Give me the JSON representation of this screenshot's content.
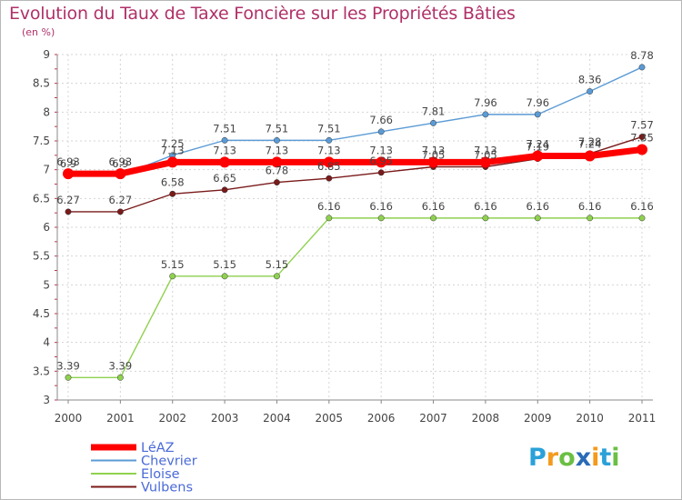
{
  "chart_data": {
    "type": "line",
    "title": "Evolution du Taux de Taxe Foncière sur les Propriétés Bâties",
    "ylabel": "(en %)",
    "xlabel": "",
    "x": [
      "2000",
      "2001",
      "2002",
      "2003",
      "2004",
      "2005",
      "2006",
      "2007",
      "2008",
      "2009",
      "2010",
      "2011"
    ],
    "ylim": [
      3,
      9
    ],
    "yticks": [
      "3",
      "3.5",
      "4",
      "4.5",
      "5",
      "5.5",
      "6",
      "6.5",
      "7",
      "7.5",
      "8",
      "8.5",
      "9"
    ],
    "grid": true,
    "legend_position": "bottom-left",
    "series": [
      {
        "name": "LéAZ",
        "color": "#ff0000",
        "values": [
          6.93,
          6.93,
          7.13,
          7.13,
          7.13,
          7.13,
          7.13,
          7.13,
          7.13,
          7.24,
          7.24,
          7.35
        ],
        "labels": [
          "6.93",
          "6.93",
          "7.13",
          "7.13",
          "7.13",
          "7.13",
          "7.13",
          "7.13",
          "7.13",
          "7.24",
          "7.24",
          "7.35"
        ]
      },
      {
        "name": "Chevrier",
        "color": "#5b9bd5",
        "values": [
          6.9,
          6.9,
          7.25,
          7.51,
          7.51,
          7.51,
          7.66,
          7.81,
          7.96,
          7.96,
          8.36,
          8.78
        ],
        "labels": [
          "6.9",
          "6.9",
          "7.25",
          "7.51",
          "7.51",
          "7.51",
          "7.66",
          "7.81",
          "7.96",
          "7.96",
          "8.36",
          "8.78"
        ]
      },
      {
        "name": "Eloise",
        "color": "#8fd14f",
        "values": [
          3.39,
          3.39,
          5.15,
          5.15,
          5.15,
          6.16,
          6.16,
          6.16,
          6.16,
          6.16,
          6.16,
          6.16
        ],
        "labels": [
          "3.39",
          "3.39",
          "5.15",
          "5.15",
          "5.15",
          "6.16",
          "6.16",
          "6.16",
          "6.16",
          "6.16",
          "6.16",
          "6.16"
        ]
      },
      {
        "name": "Vulbens",
        "color": "#7a1a1a",
        "values": [
          6.27,
          6.27,
          6.58,
          6.65,
          6.78,
          6.85,
          6.95,
          7.05,
          7.05,
          7.19,
          7.28,
          7.57
        ],
        "labels": [
          "6.27",
          "6.27",
          "6.58",
          "6.65",
          "6.78",
          "6.85",
          "6.95",
          "7.05",
          "7.05",
          "7.19",
          "7.28",
          "7.57"
        ]
      }
    ]
  },
  "logo": {
    "letters": [
      "P",
      "r",
      "o",
      "x",
      "i",
      "t",
      "i"
    ],
    "colors": [
      "#2aa1d8",
      "#f49a1e",
      "#6bbf44",
      "#2a6bb8",
      "#f49a1e",
      "#2aa1d8",
      "#6bbf44"
    ]
  }
}
